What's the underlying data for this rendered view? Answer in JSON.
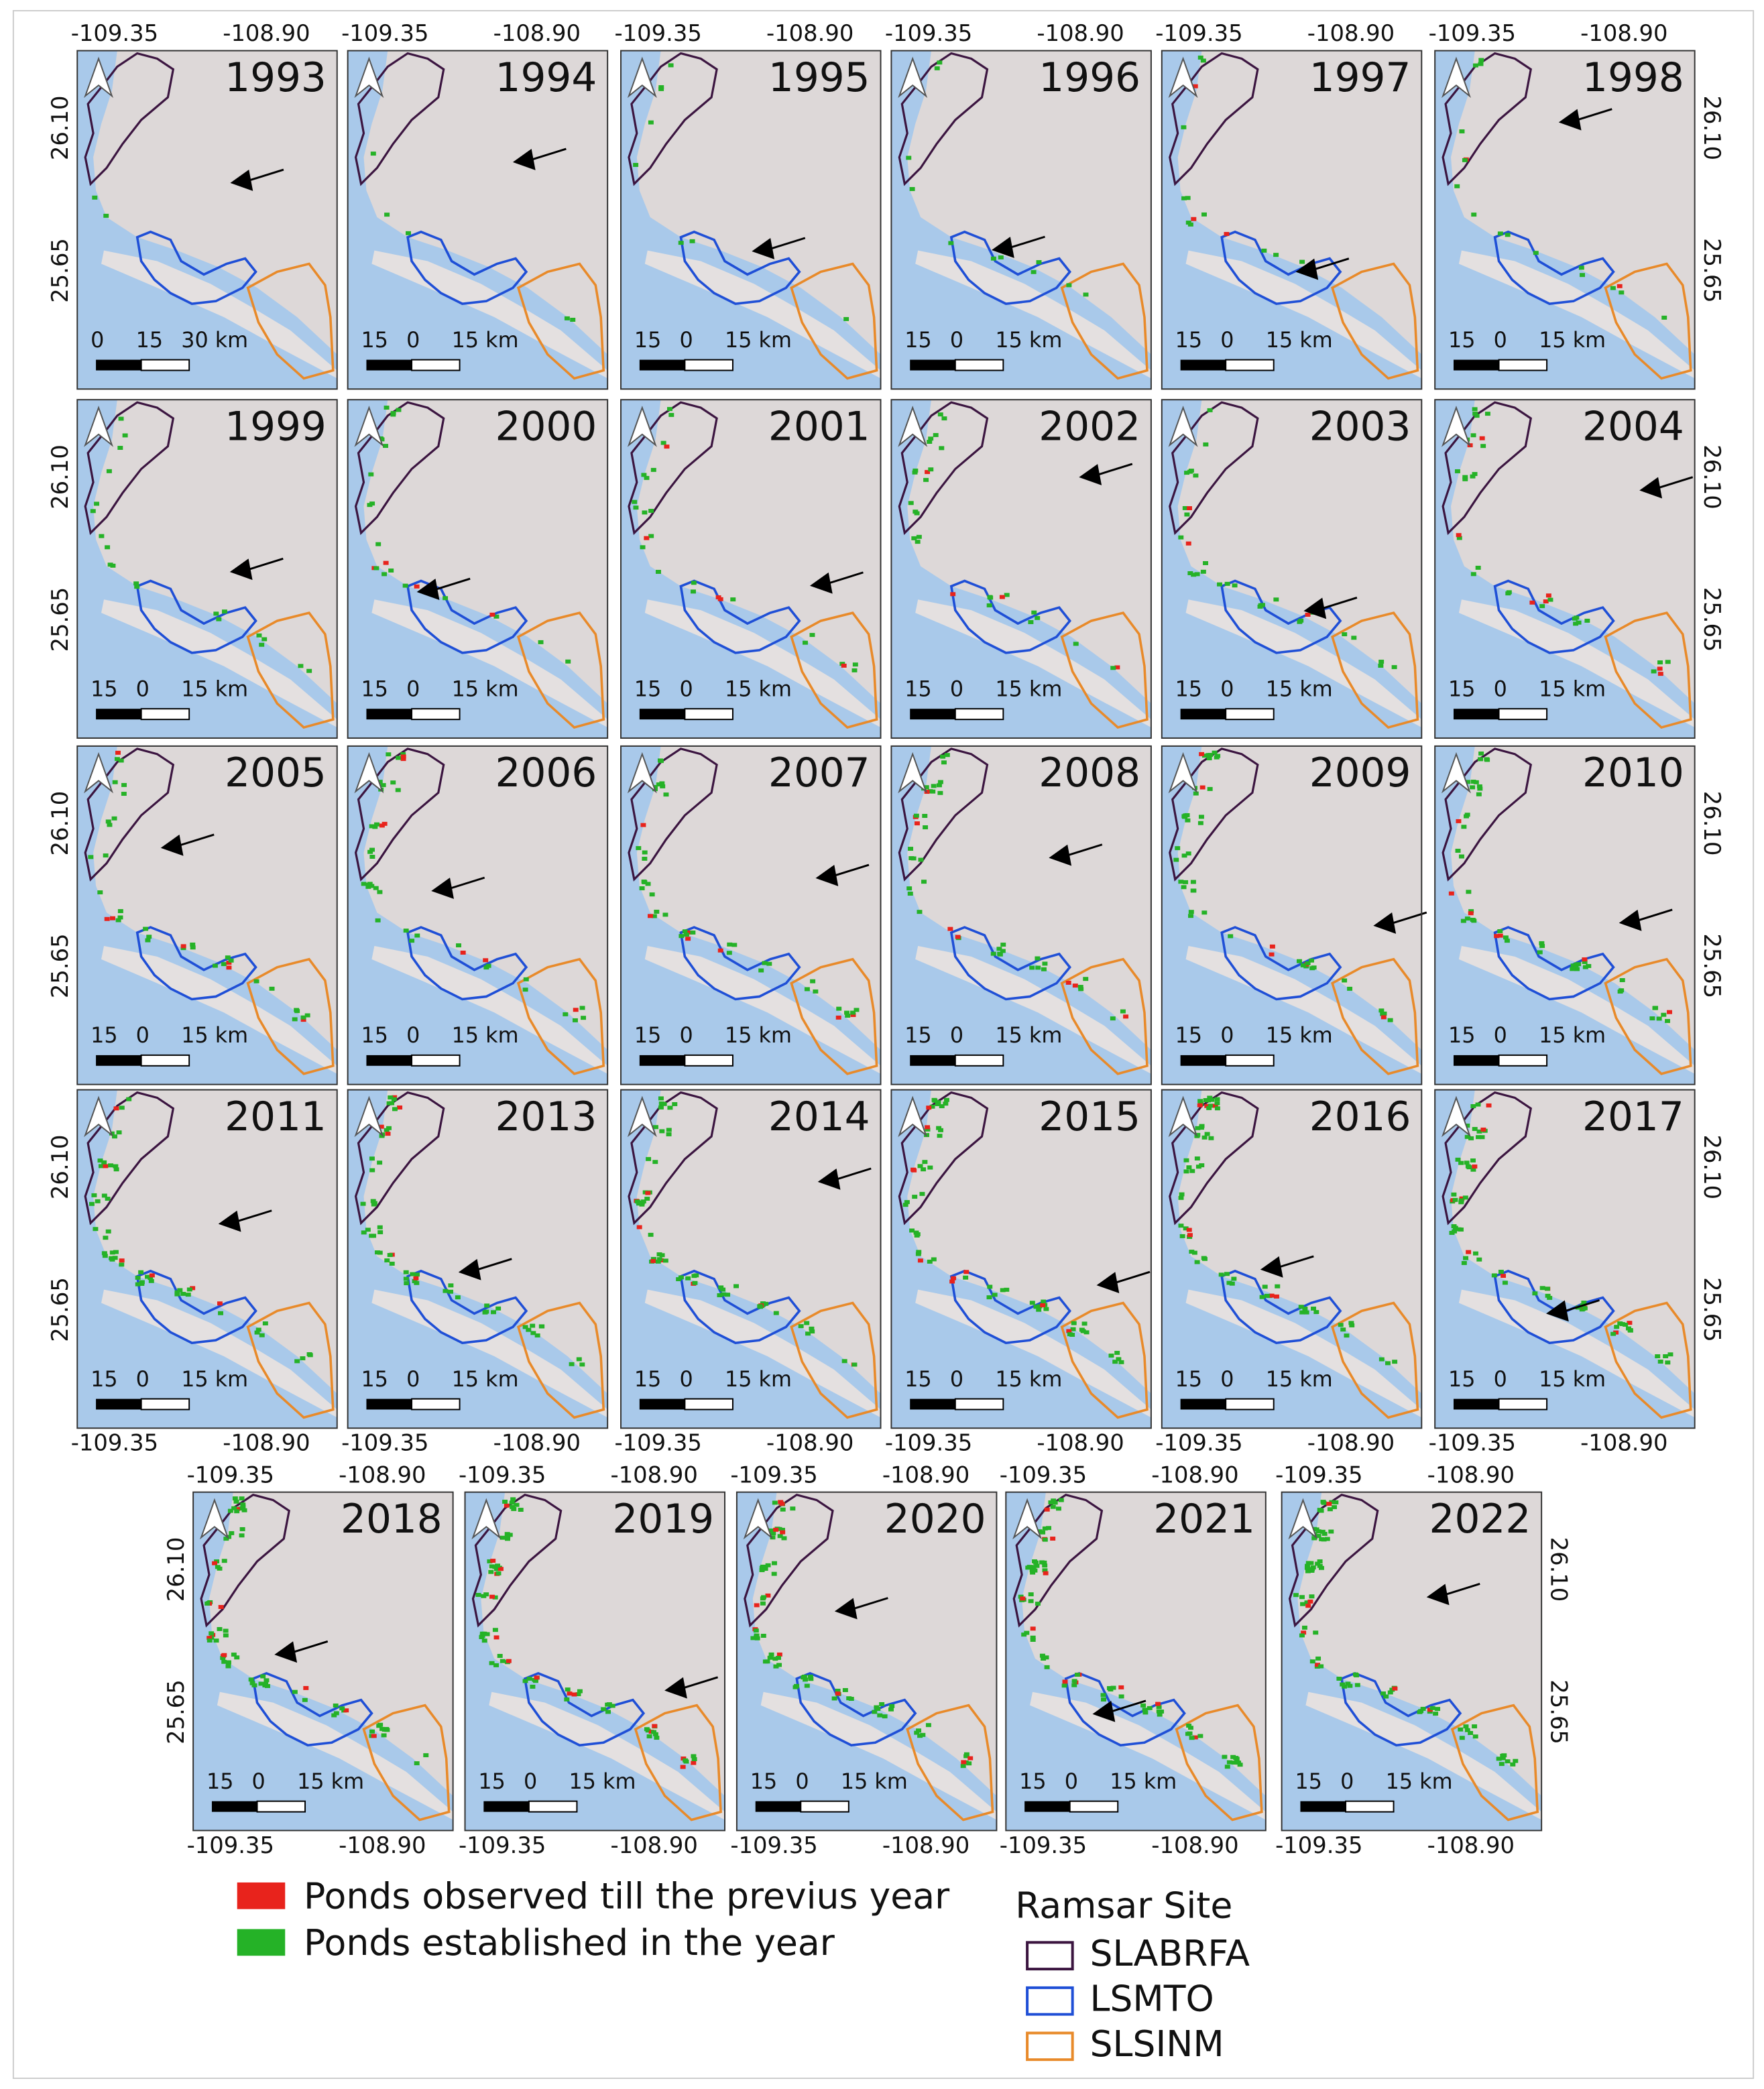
{
  "panels": {
    "years": [
      "1993",
      "1994",
      "1995",
      "1996",
      "1997",
      "1998",
      "1999",
      "2000",
      "2001",
      "2002",
      "2003",
      "2004",
      "2005",
      "2006",
      "2007",
      "2008",
      "2009",
      "2010",
      "2011",
      "2013",
      "2014",
      "2015",
      "2016",
      "2017",
      "2018",
      "2019",
      "2020",
      "2021",
      "2022"
    ]
  },
  "coordinates": {
    "lon": [
      "-109.35",
      "-108.90"
    ],
    "lat": [
      "26.10",
      "25.65"
    ]
  },
  "scale_bar": {
    "first": [
      "0",
      "15",
      "30 km"
    ],
    "other": [
      "15",
      "0",
      "15 km"
    ]
  },
  "legend": {
    "previous": "Ponds observed till the previus year",
    "established": "Ponds established in the year",
    "ramsar_title": "Ramsar Site",
    "sites": [
      "SLABRFA",
      "LSMTO",
      "SLSINM"
    ]
  }
}
